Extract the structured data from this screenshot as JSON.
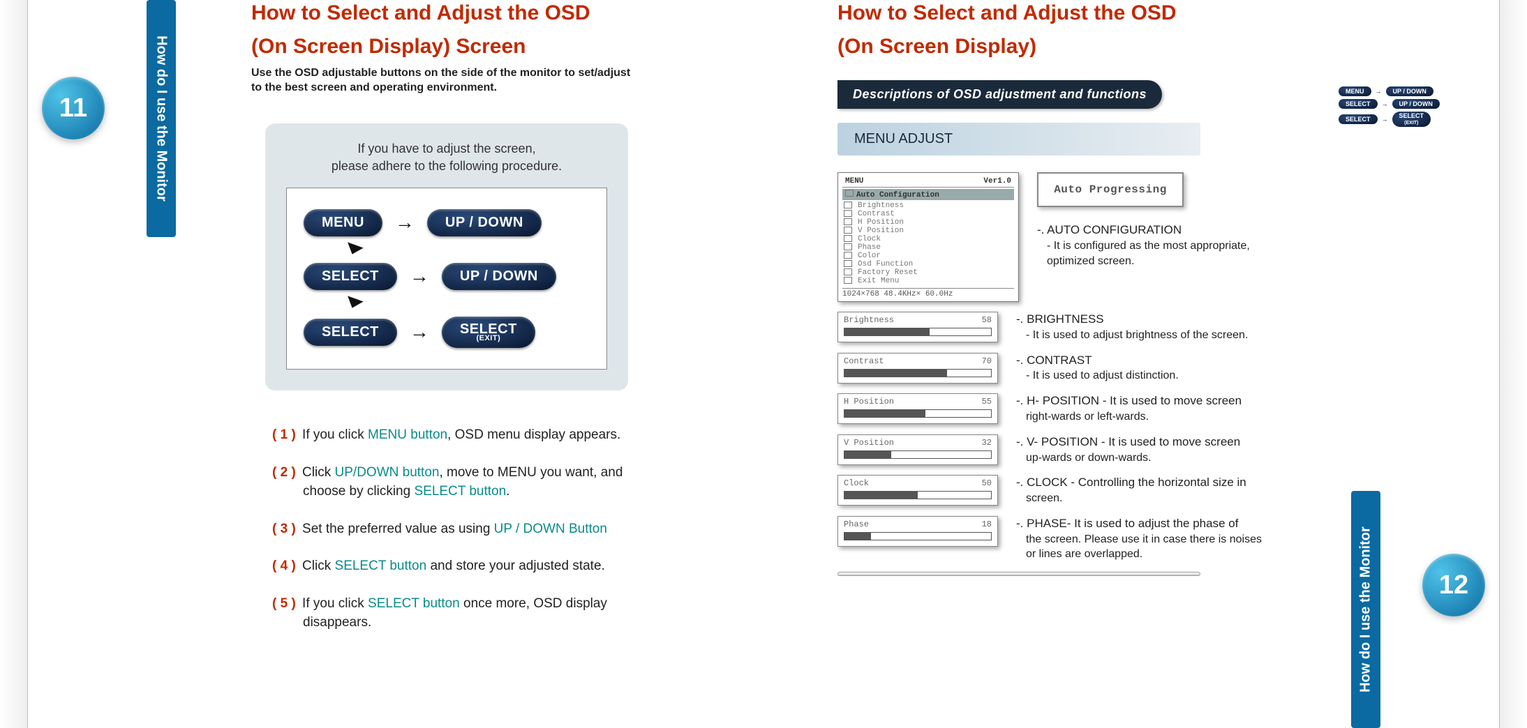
{
  "theme": {
    "accent": "#c12a00",
    "teal": "#0a8a8a",
    "blue_tab": "#0a6aa1",
    "pill_dark": "#08162e",
    "grey_card": "#dfe6ea",
    "dark_banner": "#1a2a3a"
  },
  "page_left": {
    "number": "11",
    "tab_label": "How do I use the Monitor",
    "title_1": "How to Select and Adjust the OSD",
    "title_2": "(On Screen Display) Screen",
    "subtitle": "Use the OSD adjustable buttons on the side of the monitor to set/adjust to the best screen and operating environment.",
    "card_lead_1": "If you have to adjust the screen,",
    "card_lead_2": "please adhere to the following procedure.",
    "flow": {
      "menu": "MENU",
      "updown": "UP / DOWN",
      "select": "SELECT",
      "select_exit_main": "SELECT",
      "select_exit_sub": "(EXIT)"
    },
    "steps": [
      {
        "n": "( 1 )",
        "pre": "If you click ",
        "kw": "MENU button",
        "post": ", OSD menu display appears."
      },
      {
        "n": "( 2 )",
        "pre": "Click ",
        "kw": "UP/DOWN button",
        "post": ", move to MENU you want, and",
        "post2_pre": "choose by clicking ",
        "post2_kw": "SELECT button",
        "post2_post": "."
      },
      {
        "n": "( 3 )",
        "pre": "Set the preferred value as using ",
        "kw": "UP / DOWN Button",
        "post": ""
      },
      {
        "n": "( 4 )",
        "pre": "Click ",
        "kw": "SELECT button",
        "post": " and store your adjusted state."
      },
      {
        "n": "( 5 )",
        "pre": "If you click ",
        "kw": "SELECT button",
        "post": " once more, OSD display",
        "post2": "disappears."
      }
    ]
  },
  "page_right": {
    "number": "12",
    "tab_label": "How do I use the Monitor",
    "title_1": "How to Select and Adjust the OSD",
    "title_2": "(On Screen Display)",
    "banner": "Descriptions of OSD adjustment and functions",
    "menu_adjust_label": "MENU ADJUST",
    "main_menu": {
      "header_left": "MENU",
      "header_right": "Ver1.0",
      "highlight": "Auto Configuration",
      "items": [
        "Brightness",
        "Contrast",
        "H Position",
        "V Position",
        "Clock",
        "Phase",
        "Color",
        "Osd Function",
        "Factory Reset",
        "Exit Menu"
      ],
      "footer": "1024×768  48.4KHz× 60.0Hz"
    },
    "auto_progress": "Auto Progressing",
    "auto_conf": {
      "title": "-. AUTO CONFIGURATION",
      "desc": "- It is configured as the most appropriate, optimized screen."
    },
    "sliders": [
      {
        "label": "Brightness",
        "value": 58,
        "fill": 58,
        "title": "-. BRIGHTNESS",
        "desc": "- It is used to adjust brightness of the screen."
      },
      {
        "label": "Contrast",
        "value": 70,
        "fill": 70,
        "title": "-. CONTRAST",
        "desc": "- It is used to adjust distinction."
      },
      {
        "label": "H Position",
        "value": 55,
        "fill": 55,
        "title": "-. H- POSITION  - It is used to move screen",
        "desc": "right-wards or left-wards."
      },
      {
        "label": "V Position",
        "value": 32,
        "fill": 32,
        "title": "-. V- POSITION  - It is used to move screen",
        "desc": "up-wards or down-wards."
      },
      {
        "label": "Clock",
        "value": 50,
        "fill": 50,
        "title": "-. CLOCK - Controlling the horizontal size in",
        "desc": "screen."
      },
      {
        "label": "Phase",
        "value": 18,
        "fill": 18,
        "title": "-. PHASE- It is used to adjust the phase of",
        "desc": "the screen. Please use it in case there is noises or lines are overlapped."
      }
    ],
    "mini_flow": {
      "menu": "MENU",
      "updown": "UP / DOWN",
      "select": "SELECT",
      "exit_main": "SELECT",
      "exit_sub": "(EXIT)"
    }
  }
}
